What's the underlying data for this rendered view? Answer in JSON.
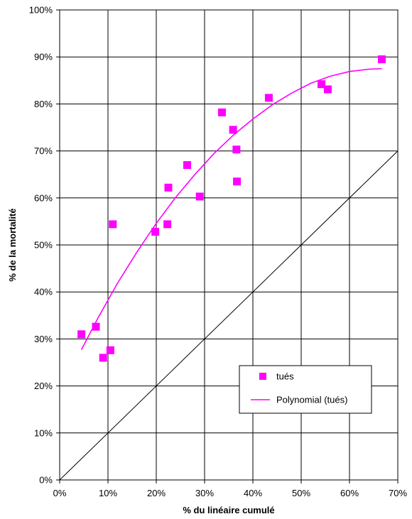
{
  "chart_data": {
    "type": "scatter",
    "title": "",
    "xlabel": "% du linéaire cumulé",
    "ylabel": "% de la mortalité",
    "xlim": [
      0,
      70
    ],
    "ylim": [
      0,
      100
    ],
    "x_ticks": [
      0,
      10,
      20,
      30,
      40,
      50,
      60,
      70
    ],
    "y_ticks": [
      0,
      10,
      20,
      30,
      40,
      50,
      60,
      70,
      80,
      90,
      100
    ],
    "x_tick_labels": [
      "0%",
      "10%",
      "20%",
      "30%",
      "40%",
      "50%",
      "60%",
      "70%"
    ],
    "y_tick_labels": [
      "0%",
      "10%",
      "20%",
      "30%",
      "40%",
      "50%",
      "60%",
      "70%",
      "80%",
      "90%",
      "100%"
    ],
    "grid": true,
    "legend_position": "lower-right",
    "series": [
      {
        "name": "tués",
        "kind": "scatter",
        "color": "#ff00ff",
        "points": [
          [
            4.5,
            31.0
          ],
          [
            7.5,
            32.6
          ],
          [
            9.0,
            26.0
          ],
          [
            10.5,
            27.6
          ],
          [
            11.0,
            54.4
          ],
          [
            19.8,
            52.8
          ],
          [
            22.3,
            54.4
          ],
          [
            22.5,
            62.2
          ],
          [
            26.4,
            67.0
          ],
          [
            29.0,
            60.3
          ],
          [
            33.6,
            78.2
          ],
          [
            35.9,
            74.5
          ],
          [
            36.6,
            70.3
          ],
          [
            36.7,
            63.5
          ],
          [
            43.3,
            81.3
          ],
          [
            54.2,
            84.2
          ],
          [
            55.5,
            83.1
          ],
          [
            66.7,
            89.5
          ]
        ]
      },
      {
        "name": "Polynomial (tués)",
        "kind": "trendline",
        "color": "#ff00ff",
        "points": [
          [
            4.5,
            27.7
          ],
          [
            8,
            34.6
          ],
          [
            12,
            41.9
          ],
          [
            16,
            48.5
          ],
          [
            20,
            54.6
          ],
          [
            24,
            60.1
          ],
          [
            28,
            65.0
          ],
          [
            32,
            69.5
          ],
          [
            36,
            73.4
          ],
          [
            40,
            76.8
          ],
          [
            44,
            79.8
          ],
          [
            48,
            82.3
          ],
          [
            52,
            84.4
          ],
          [
            56,
            85.9
          ],
          [
            60,
            86.9
          ],
          [
            64,
            87.4
          ],
          [
            66.7,
            87.5
          ]
        ]
      },
      {
        "name": "",
        "kind": "reference-line",
        "color": "#000000",
        "points": [
          [
            0,
            0
          ],
          [
            70,
            70
          ]
        ]
      }
    ]
  }
}
